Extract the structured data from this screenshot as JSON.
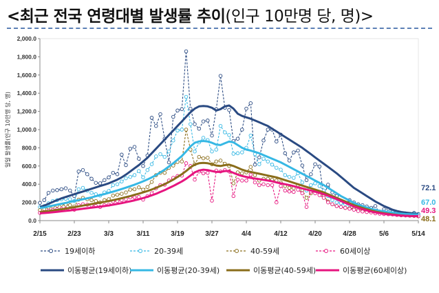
{
  "title": {
    "main": "<최근 전국 연령대별 발생률 추이",
    "paren": "(인구 10만명 당, 명)>"
  },
  "chart_data": {
    "type": "line",
    "ylabel": "일일 발생률(인구 10만명 당, 명)",
    "ylim": [
      0,
      2000
    ],
    "yticks": [
      "0.0",
      "200.0",
      "400.0",
      "600.0",
      "800.0",
      "1,000.0",
      "1,200.0",
      "1,400.0",
      "1,600.0",
      "1,800.0",
      "2,000.0"
    ],
    "xticks": [
      "2/15",
      "2/23",
      "3/3",
      "3/11",
      "3/19",
      "3/27",
      "4/4",
      "4/12",
      "4/20",
      "4/28",
      "5/6",
      "5/14"
    ],
    "n_days": 89,
    "colors": {
      "age19": "#2a4a82",
      "age20": "#36b8e4",
      "age40": "#8a6d1a",
      "age60": "#e6157f"
    },
    "series": [
      {
        "name": "19세이하",
        "kind": "daily",
        "color_key": "age19",
        "values": [
          195,
          225,
          305,
          330,
          335,
          345,
          355,
          330,
          270,
          540,
          555,
          510,
          460,
          415,
          410,
          445,
          475,
          525,
          510,
          725,
          610,
          790,
          810,
          680,
          600,
          715,
          1130,
          1040,
          1170,
          900,
          640,
          1140,
          1210,
          1225,
          1860,
          1230,
          1060,
          1010,
          1090,
          1100,
          935,
          1225,
          1590,
          1240,
          1215,
          875,
          900,
          1000,
          1230,
          1290,
          615,
          695,
          880,
          1000,
          1000,
          870,
          945,
          740,
          660,
          750,
          770,
          605,
          445,
          510,
          620,
          595,
          275,
          395,
          310,
          270,
          190,
          190,
          225,
          200,
          180,
          170,
          155,
          140,
          160,
          85,
          125,
          130,
          105,
          85,
          65,
          70,
          70,
          85,
          72
        ]
      },
      {
        "name": "20-39세",
        "kind": "daily",
        "color_key": "age20",
        "values": [
          150,
          160,
          190,
          215,
          225,
          235,
          240,
          235,
          215,
          345,
          360,
          330,
          305,
          290,
          275,
          310,
          325,
          390,
          400,
          430,
          465,
          480,
          500,
          545,
          475,
          555,
          620,
          705,
          730,
          700,
          760,
          880,
          990,
          1000,
          1360,
          1060,
          760,
          860,
          910,
          885,
          760,
          780,
          1040,
          970,
          940,
          735,
          740,
          750,
          800,
          935,
          730,
          620,
          680,
          650,
          615,
          580,
          560,
          500,
          480,
          470,
          520,
          420,
          330,
          390,
          410,
          380,
          330,
          270,
          225,
          200,
          190,
          180,
          170,
          160,
          145,
          140,
          130,
          120,
          105,
          100,
          100,
          95,
          90,
          80,
          75,
          80,
          72,
          75,
          67
        ]
      },
      {
        "name": "40-59세",
        "kind": "daily",
        "color_key": "age40",
        "values": [
          115,
          125,
          145,
          155,
          165,
          175,
          175,
          170,
          155,
          230,
          250,
          235,
          225,
          215,
          200,
          225,
          235,
          275,
          285,
          295,
          310,
          340,
          345,
          365,
          340,
          370,
          425,
          500,
          525,
          525,
          580,
          605,
          645,
          650,
          1000,
          780,
          620,
          700,
          685,
          690,
          620,
          650,
          660,
          625,
          600,
          410,
          530,
          520,
          530,
          590,
          500,
          440,
          460,
          460,
          450,
          440,
          420,
          380,
          360,
          355,
          390,
          335,
          250,
          300,
          330,
          310,
          270,
          210,
          180,
          160,
          150,
          140,
          135,
          130,
          120,
          110,
          100,
          95,
          85,
          80,
          78,
          75,
          70,
          65,
          60,
          60,
          55,
          52,
          48
        ]
      },
      {
        "name": "60세이상",
        "kind": "daily",
        "color_key": "age60",
        "values": [
          85,
          95,
          110,
          120,
          125,
          130,
          130,
          130,
          120,
          170,
          180,
          175,
          170,
          160,
          150,
          170,
          175,
          210,
          215,
          225,
          235,
          255,
          255,
          260,
          230,
          270,
          300,
          355,
          390,
          395,
          440,
          470,
          490,
          495,
          630,
          600,
          450,
          540,
          520,
          525,
          220,
          550,
          540,
          555,
          540,
          270,
          450,
          440,
          440,
          505,
          420,
          390,
          400,
          390,
          390,
          200,
          380,
          330,
          320,
          315,
          340,
          300,
          150,
          320,
          300,
          280,
          250,
          200,
          180,
          160,
          150,
          140,
          130,
          120,
          105,
          100,
          95,
          90,
          80,
          75,
          72,
          70,
          68,
          62,
          58,
          56,
          54,
          52,
          49
        ]
      },
      {
        "name": "이동평균(19세이하)",
        "kind": "ma",
        "color_key": "age19",
        "values": [
          150,
          165,
          185,
          205,
          225,
          245,
          260,
          275,
          290,
          305,
          320,
          335,
          350,
          365,
          380,
          395,
          410,
          430,
          450,
          475,
          505,
          540,
          575,
          610,
          650,
          690,
          740,
          790,
          840,
          890,
          940,
          990,
          1040,
          1090,
          1140,
          1190,
          1230,
          1255,
          1260,
          1255,
          1240,
          1210,
          1225,
          1255,
          1265,
          1230,
          1175,
          1150,
          1135,
          1120,
          1100,
          1080,
          1060,
          1040,
          1010,
          980,
          950,
          920,
          890,
          860,
          830,
          800,
          765,
          730,
          695,
          660,
          625,
          590,
          555,
          520,
          480,
          440,
          400,
          360,
          330,
          300,
          270,
          240,
          210,
          185,
          160,
          140,
          120,
          105,
          95,
          88,
          83,
          78,
          75
        ]
      },
      {
        "name": "이동평균(20-39세)",
        "kind": "ma",
        "color_key": "age20",
        "values": [
          140,
          145,
          155,
          165,
          175,
          185,
          195,
          205,
          215,
          225,
          235,
          245,
          255,
          268,
          280,
          292,
          305,
          318,
          332,
          347,
          362,
          378,
          395,
          413,
          432,
          452,
          475,
          500,
          530,
          560,
          595,
          630,
          670,
          710,
          760,
          815,
          855,
          870,
          875,
          870,
          855,
          835,
          830,
          850,
          870,
          860,
          830,
          800,
          780,
          770,
          755,
          740,
          720,
          700,
          680,
          660,
          640,
          615,
          590,
          565,
          540,
          515,
          490,
          465,
          440,
          415,
          390,
          360,
          330,
          300,
          270,
          245,
          220,
          195,
          175,
          160,
          145,
          130,
          118,
          108,
          100,
          92,
          86,
          80,
          76,
          72,
          70,
          68,
          67
        ]
      },
      {
        "name": "이동평균(40-59세)",
        "kind": "ma",
        "color_key": "age40",
        "values": [
          95,
          100,
          105,
          112,
          118,
          125,
          132,
          140,
          148,
          156,
          165,
          173,
          182,
          190,
          198,
          206,
          215,
          225,
          235,
          246,
          258,
          270,
          283,
          296,
          310,
          325,
          342,
          360,
          380,
          400,
          425,
          450,
          480,
          510,
          545,
          585,
          615,
          630,
          635,
          630,
          620,
          605,
          600,
          610,
          615,
          600,
          580,
          560,
          545,
          535,
          525,
          515,
          505,
          495,
          485,
          475,
          460,
          445,
          430,
          415,
          400,
          385,
          370,
          355,
          340,
          325,
          310,
          290,
          270,
          250,
          230,
          210,
          190,
          170,
          155,
          140,
          125,
          112,
          100,
          90,
          82,
          75,
          68,
          62,
          57,
          53,
          50,
          49,
          48
        ]
      },
      {
        "name": "이동평균(60세이상)",
        "kind": "ma",
        "color_key": "age60",
        "values": [
          80,
          83,
          87,
          92,
          97,
          102,
          107,
          112,
          118,
          124,
          130,
          136,
          142,
          148,
          154,
          160,
          167,
          175,
          183,
          192,
          202,
          212,
          223,
          235,
          248,
          262,
          278,
          295,
          315,
          335,
          358,
          380,
          405,
          430,
          460,
          495,
          530,
          550,
          560,
          555,
          545,
          535,
          535,
          545,
          545,
          525,
          505,
          490,
          480,
          470,
          462,
          455,
          448,
          440,
          432,
          420,
          410,
          400,
          390,
          378,
          366,
          354,
          342,
          330,
          318,
          305,
          290,
          273,
          255,
          235,
          215,
          195,
          175,
          155,
          140,
          125,
          112,
          100,
          90,
          82,
          75,
          69,
          64,
          60,
          56,
          53,
          51,
          50,
          49
        ]
      }
    ],
    "end_labels": [
      {
        "text": "72.1",
        "color_key": "age19"
      },
      {
        "text": "67.0",
        "color_key": "age20"
      },
      {
        "text": "49.3",
        "color_key": "age60"
      },
      {
        "text": "48.1",
        "color_key": "age40"
      }
    ]
  }
}
